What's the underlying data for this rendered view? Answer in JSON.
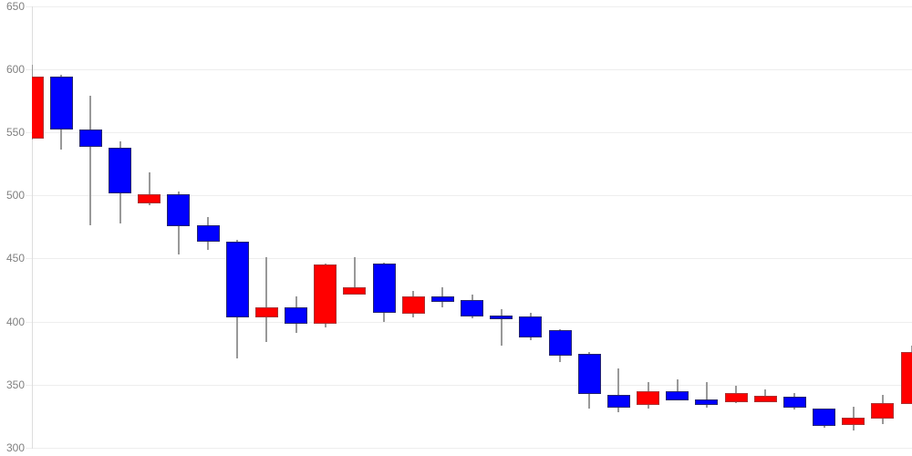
{
  "chart": {
    "title": "",
    "y_axis": {
      "tick_labels": [
        "650",
        "600",
        "550",
        "500",
        "450",
        "400",
        "350",
        "300"
      ],
      "max": 650,
      "min": 300,
      "step": 50
    },
    "colors": {
      "background": "#ffffff",
      "up_fill": "#ff0000",
      "up_border": "#aa3333",
      "down_fill": "#0000ff",
      "down_border": "#24246e",
      "wick": "#999999",
      "gridline": "#eeeeee",
      "axis_line": "#dddddd",
      "tick_label": "#808080"
    }
  },
  "chart_data": {
    "type": "candlestick",
    "title": "",
    "xlabel": "",
    "ylabel": "",
    "ylim": [
      300,
      650
    ],
    "y_ticks": [
      650,
      600,
      550,
      500,
      450,
      400,
      350,
      300
    ],
    "grid": "horizontal-only",
    "legend": "none",
    "color_convention": "red candle = close above open (up), blue candle = close below open (down)",
    "layout_hint": "31 equally spaced candles; first and last candle bodies are clipped at the left/right plot edges",
    "candles": [
      {
        "open": 545,
        "high": 604,
        "low": 545,
        "close": 594,
        "direction": "up"
      },
      {
        "open": 594,
        "high": 596,
        "low": 537,
        "close": 552,
        "direction": "down"
      },
      {
        "open": 552,
        "high": 579,
        "low": 476,
        "close": 538,
        "direction": "down"
      },
      {
        "open": 538,
        "high": 543,
        "low": 478,
        "close": 502,
        "direction": "down"
      },
      {
        "open": 494,
        "high": 518,
        "low": 492,
        "close": 501,
        "direction": "up"
      },
      {
        "open": 501,
        "high": 503,
        "low": 453,
        "close": 476,
        "direction": "down"
      },
      {
        "open": 476,
        "high": 483,
        "low": 457,
        "close": 463,
        "direction": "down"
      },
      {
        "open": 463,
        "high": 465,
        "low": 371,
        "close": 403,
        "direction": "down"
      },
      {
        "open": 403,
        "high": 451,
        "low": 384,
        "close": 411,
        "direction": "up"
      },
      {
        "open": 411,
        "high": 420,
        "low": 391,
        "close": 398,
        "direction": "down"
      },
      {
        "open": 398,
        "high": 446,
        "low": 395,
        "close": 445,
        "direction": "up"
      },
      {
        "open": 421,
        "high": 451,
        "low": 421,
        "close": 427,
        "direction": "up"
      },
      {
        "open": 446,
        "high": 447,
        "low": 400,
        "close": 407,
        "direction": "down"
      },
      {
        "open": 406,
        "high": 424,
        "low": 403,
        "close": 420,
        "direction": "up"
      },
      {
        "open": 420,
        "high": 427,
        "low": 411,
        "close": 416,
        "direction": "down"
      },
      {
        "open": 417,
        "high": 421,
        "low": 402,
        "close": 404,
        "direction": "down"
      },
      {
        "open": 405,
        "high": 410,
        "low": 381,
        "close": 402,
        "direction": "down"
      },
      {
        "open": 404,
        "high": 407,
        "low": 385,
        "close": 387,
        "direction": "down"
      },
      {
        "open": 393,
        "high": 394,
        "low": 368,
        "close": 373,
        "direction": "down"
      },
      {
        "open": 374,
        "high": 376,
        "low": 331,
        "close": 342,
        "direction": "down"
      },
      {
        "open": 342,
        "high": 363,
        "low": 328,
        "close": 332,
        "direction": "down"
      },
      {
        "open": 334,
        "high": 352,
        "low": 331,
        "close": 345,
        "direction": "up"
      },
      {
        "open": 345,
        "high": 354,
        "low": 337,
        "close": 338,
        "direction": "down"
      },
      {
        "open": 338,
        "high": 352,
        "low": 332,
        "close": 334,
        "direction": "down"
      },
      {
        "open": 336,
        "high": 349,
        "low": 335,
        "close": 343,
        "direction": "up"
      },
      {
        "open": 336,
        "high": 346,
        "low": 336,
        "close": 341,
        "direction": "up"
      },
      {
        "open": 340,
        "high": 343,
        "low": 330,
        "close": 331,
        "direction": "down"
      },
      {
        "open": 331,
        "high": 331,
        "low": 316,
        "close": 317,
        "direction": "down"
      },
      {
        "open": 318,
        "high": 332,
        "low": 313,
        "close": 324,
        "direction": "up"
      },
      {
        "open": 323,
        "high": 342,
        "low": 319,
        "close": 335,
        "direction": "up"
      },
      {
        "open": 335,
        "high": 381,
        "low": 335,
        "close": 376,
        "direction": "up"
      }
    ]
  }
}
